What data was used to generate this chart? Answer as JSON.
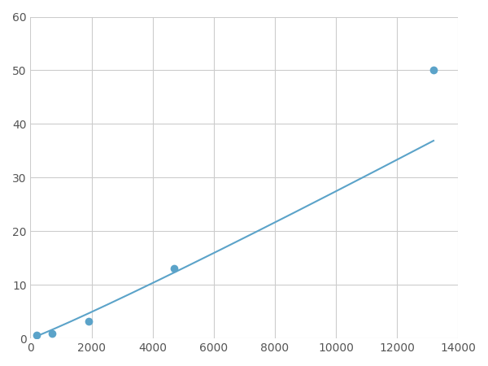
{
  "x_data": [
    200,
    700,
    1900,
    4700,
    13200
  ],
  "y_data": [
    0.7,
    1.0,
    3.2,
    13.0,
    50.0
  ],
  "line_color": "#5ba3c9",
  "marker_color": "#5ba3c9",
  "marker_size": 7,
  "linewidth": 1.5,
  "xlim": [
    0,
    14000
  ],
  "ylim": [
    0,
    60
  ],
  "xticks": [
    0,
    2000,
    4000,
    6000,
    8000,
    10000,
    12000,
    14000
  ],
  "yticks": [
    0,
    10,
    20,
    30,
    40,
    50,
    60
  ],
  "grid_color": "#cccccc",
  "background_color": "#ffffff",
  "tick_label_color": "#555555",
  "tick_fontsize": 10
}
